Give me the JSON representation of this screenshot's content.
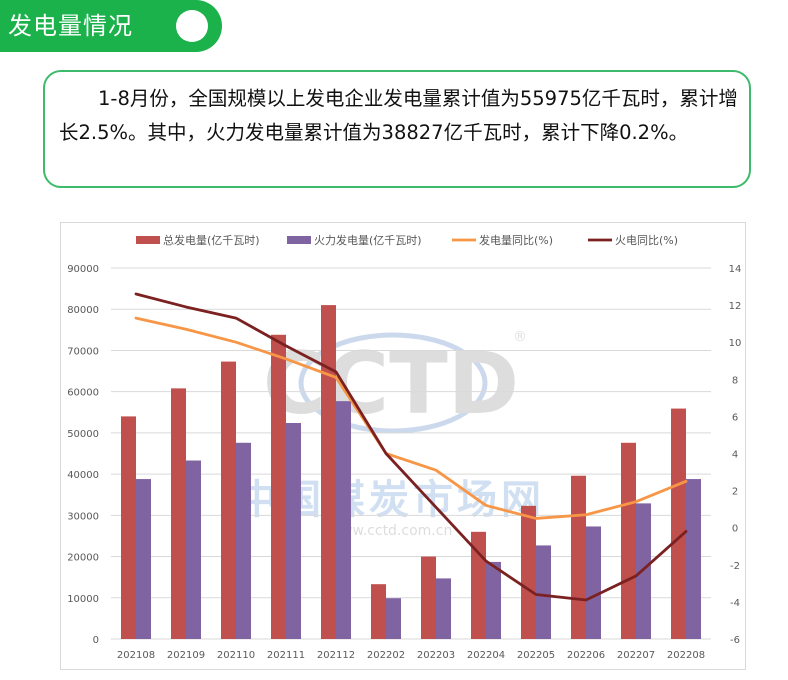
{
  "header": {
    "title": "发电量情况"
  },
  "summary": {
    "text": "1-8月份，全国规模以上发电企业发电量累计值为55975亿千瓦时，累计增长2.5%。其中，火力发电量累计值为38827亿千瓦时，累计下降0.2%。"
  },
  "watermark": {
    "logo": "CCTD",
    "registered": "®",
    "cn": "中国煤炭市场网",
    "url": "www.cctd.com.cn"
  },
  "colors": {
    "total": "#c0504d",
    "thermal": "#8064a2",
    "total_yoy": "#f79646",
    "thermal_yoy": "#7b2121",
    "accent": "#1bb24b"
  },
  "chart_data": {
    "type": "bar",
    "categories": [
      "202108",
      "202109",
      "202110",
      "202111",
      "202112",
      "202202",
      "202203",
      "202204",
      "202205",
      "202206",
      "202207",
      "202208"
    ],
    "series": [
      {
        "name": "总发电量(亿千瓦时)",
        "kind": "bar",
        "axis": "left",
        "values": [
          54000,
          60800,
          67300,
          73800,
          81000,
          13300,
          20000,
          26000,
          32300,
          39600,
          47600,
          55900
        ]
      },
      {
        "name": "火力发电量(亿千瓦时)",
        "kind": "bar",
        "axis": "left",
        "values": [
          38800,
          43300,
          47600,
          52400,
          57700,
          9900,
          14700,
          18700,
          22700,
          27300,
          32900,
          38800
        ]
      },
      {
        "name": "发电量同比(%)",
        "kind": "line",
        "axis": "right",
        "values": [
          11.3,
          10.7,
          10.0,
          9.1,
          8.1,
          4.0,
          3.1,
          1.2,
          0.5,
          0.7,
          1.4,
          2.5
        ]
      },
      {
        "name": "火电同比(%)",
        "kind": "line",
        "axis": "right",
        "values": [
          12.6,
          11.9,
          11.3,
          9.8,
          8.4,
          4.0,
          1.1,
          -1.8,
          -3.6,
          -3.9,
          -2.6,
          -0.2
        ]
      }
    ],
    "left_axis": {
      "min": 0,
      "max": 90000,
      "ticks": [
        "0",
        "10000",
        "20000",
        "30000",
        "40000",
        "50000",
        "60000",
        "70000",
        "80000",
        "90000"
      ]
    },
    "right_axis": {
      "min": -6,
      "max": 14,
      "ticks": [
        "-6",
        "-4",
        "-2",
        "0",
        "2",
        "4",
        "6",
        "8",
        "10",
        "12",
        "14"
      ]
    },
    "grid": true,
    "legend": "top"
  }
}
